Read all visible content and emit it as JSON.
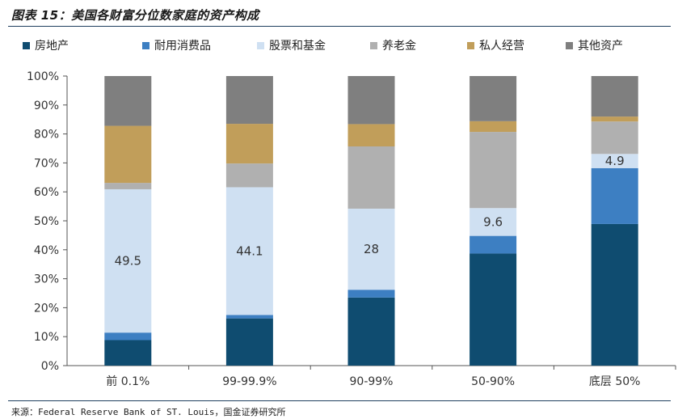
{
  "figure_title": "图表 15：美国各财富分位数家庭的资产构成",
  "source": "来源：Federal Reserve Bank of ST. Louis，国金证券研究所",
  "chart_data": {
    "type": "bar",
    "stacked": true,
    "title": "美国各财富分位数家庭的资产构成",
    "xlabel": "",
    "ylabel": "",
    "ylim": [
      0,
      100
    ],
    "y_ticks": [
      "0%",
      "10%",
      "20%",
      "30%",
      "40%",
      "50%",
      "60%",
      "70%",
      "80%",
      "90%",
      "100%"
    ],
    "legend_position": "top",
    "categories": [
      "前 0.1%",
      "99-99.9%",
      "90-99%",
      "50-90%",
      "底层 50%"
    ],
    "series": [
      {
        "name": "房地产",
        "color": "#0f4c70",
        "values": [
          8.8,
          16.3,
          23.5,
          38.7,
          48.9
        ]
      },
      {
        "name": "耐用消费品",
        "color": "#3d7fc2",
        "values": [
          2.6,
          1.2,
          2.7,
          6.1,
          19.3
        ]
      },
      {
        "name": "股票和基金",
        "color": "#cfe0f2",
        "values": [
          49.5,
          44.1,
          28.0,
          9.6,
          4.9
        ]
      },
      {
        "name": "养老金",
        "color": "#b0b0b0",
        "values": [
          2.2,
          8.2,
          21.5,
          26.3,
          11.2
        ]
      },
      {
        "name": "私人经营",
        "color": "#c19e5a",
        "values": [
          19.7,
          13.7,
          7.7,
          3.7,
          1.7
        ]
      },
      {
        "name": "其他资产",
        "color": "#7f7f7f",
        "values": [
          17.2,
          16.5,
          16.6,
          15.6,
          14.0
        ]
      }
    ],
    "data_labels": [
      {
        "category": "前 0.1%",
        "series": "股票和基金",
        "text": "49.5"
      },
      {
        "category": "99-99.9%",
        "series": "股票和基金",
        "text": "44.1"
      },
      {
        "category": "90-99%",
        "series": "股票和基金",
        "text": "28"
      },
      {
        "category": "50-90%",
        "series": "股票和基金",
        "text": "9.6"
      },
      {
        "category": "底层 50%",
        "series": "股票和基金",
        "text": "4.9"
      }
    ]
  }
}
